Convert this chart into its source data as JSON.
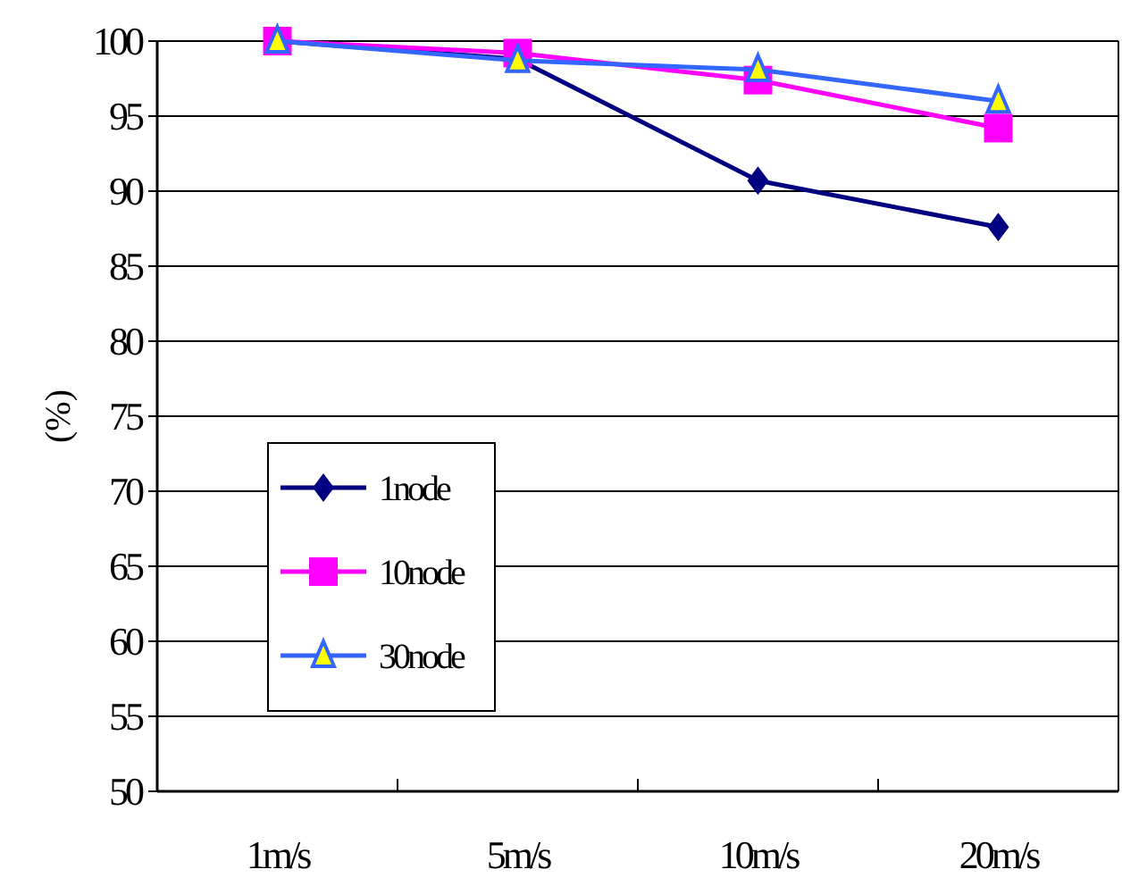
{
  "chart_data": {
    "type": "line",
    "ylabel": "(%)",
    "categories": [
      "1m/s",
      "5m/s",
      "10m/s",
      "20m/s"
    ],
    "series": [
      {
        "name": "1node",
        "color": "#000080",
        "marker": "diamond",
        "values": [
          100,
          98.8,
          90.7,
          87.6
        ]
      },
      {
        "name": "10node",
        "color": "#ff00ff",
        "marker": "square",
        "values": [
          100,
          99.2,
          97.4,
          94.2
        ]
      },
      {
        "name": "30node",
        "color": "#3366ff",
        "marker": "triangle",
        "values": [
          100,
          98.7,
          98.1,
          96.0
        ]
      }
    ],
    "ylim": [
      50,
      100
    ],
    "yticks": [
      50,
      55,
      60,
      65,
      70,
      75,
      80,
      85,
      90,
      95,
      100
    ],
    "grid": "y",
    "legend": "bottom left"
  }
}
